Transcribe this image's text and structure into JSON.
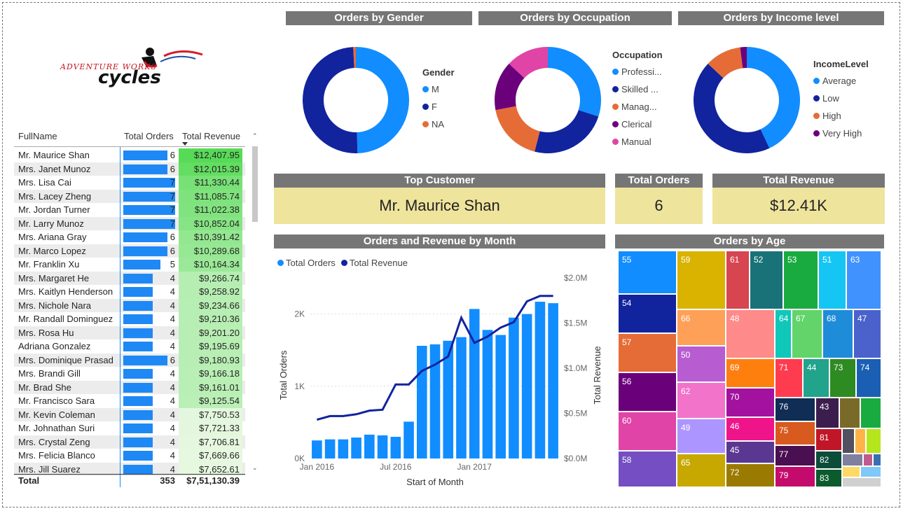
{
  "logo": {
    "line1": "ADVENTURE WORKS",
    "line2": "cycles"
  },
  "table": {
    "headers": {
      "name": "FullName",
      "orders": "Total Orders",
      "revenue": "Total Revenue"
    },
    "rows": [
      {
        "name": "Mr. Maurice Shan",
        "orders": 6,
        "revenue": "$12,407.95",
        "rev_num": 12407.95
      },
      {
        "name": "Mrs. Janet Munoz",
        "orders": 6,
        "revenue": "$12,015.39",
        "rev_num": 12015.39
      },
      {
        "name": "Mrs. Lisa Cai",
        "orders": 7,
        "revenue": "$11,330.44",
        "rev_num": 11330.44
      },
      {
        "name": "Mrs. Lacey Zheng",
        "orders": 7,
        "revenue": "$11,085.74",
        "rev_num": 11085.74
      },
      {
        "name": "Mr. Jordan Turner",
        "orders": 7,
        "revenue": "$11,022.38",
        "rev_num": 11022.38
      },
      {
        "name": "Mr. Larry Munoz",
        "orders": 7,
        "revenue": "$10,852.04",
        "rev_num": 10852.04
      },
      {
        "name": "Mrs. Ariana Gray",
        "orders": 6,
        "revenue": "$10,391.42",
        "rev_num": 10391.42
      },
      {
        "name": "Mr. Marco Lopez",
        "orders": 6,
        "revenue": "$10,289.68",
        "rev_num": 10289.68
      },
      {
        "name": "Mr. Franklin Xu",
        "orders": 5,
        "revenue": "$10,164.34",
        "rev_num": 10164.34
      },
      {
        "name": "Mrs. Margaret He",
        "orders": 4,
        "revenue": "$9,266.74",
        "rev_num": 9266.74
      },
      {
        "name": "Mrs. Kaitlyn Henderson",
        "orders": 4,
        "revenue": "$9,258.92",
        "rev_num": 9258.92
      },
      {
        "name": "Mrs. Nichole Nara",
        "orders": 4,
        "revenue": "$9,234.66",
        "rev_num": 9234.66
      },
      {
        "name": "Mr. Randall Dominguez",
        "orders": 4,
        "revenue": "$9,210.36",
        "rev_num": 9210.36
      },
      {
        "name": "Mrs. Rosa Hu",
        "orders": 4,
        "revenue": "$9,201.20",
        "rev_num": 9201.2
      },
      {
        "name": "Adriana Gonzalez",
        "orders": 4,
        "revenue": "$9,195.69",
        "rev_num": 9195.69
      },
      {
        "name": "Mrs. Dominique Prasad",
        "orders": 6,
        "revenue": "$9,180.93",
        "rev_num": 9180.93
      },
      {
        "name": "Mrs. Brandi Gill",
        "orders": 4,
        "revenue": "$9,166.18",
        "rev_num": 9166.18
      },
      {
        "name": "Mr. Brad She",
        "orders": 4,
        "revenue": "$9,161.01",
        "rev_num": 9161.01
      },
      {
        "name": "Mr. Francisco Sara",
        "orders": 4,
        "revenue": "$9,125.54",
        "rev_num": 9125.54
      },
      {
        "name": "Mr. Kevin Coleman",
        "orders": 4,
        "revenue": "$7,750.53",
        "rev_num": 7750.53
      },
      {
        "name": "Mr. Johnathan Suri",
        "orders": 4,
        "revenue": "$7,721.33",
        "rev_num": 7721.33
      },
      {
        "name": "Mrs. Crystal Zeng",
        "orders": 4,
        "revenue": "$7,706.81",
        "rev_num": 7706.81
      },
      {
        "name": "Mrs. Felicia Blanco",
        "orders": 4,
        "revenue": "$7,669.66",
        "rev_num": 7669.66
      },
      {
        "name": "Mrs. Jill Suarez",
        "orders": 4,
        "revenue": "$7,652.61",
        "rev_num": 7652.61
      }
    ],
    "total": {
      "label": "Total",
      "orders": "353",
      "revenue": "$7,51,130.39"
    }
  },
  "cards": {
    "top_customer": {
      "title": "Top Customer",
      "value": "Mr. Maurice Shan"
    },
    "total_orders": {
      "title": "Total Orders",
      "value": "6"
    },
    "total_revenue": {
      "title": "Total Revenue",
      "value": "$12.41K"
    }
  },
  "chart_data": [
    {
      "type": "pie",
      "title": "Orders by Gender",
      "legend_title": "Gender",
      "labels": [
        "M",
        "F",
        "NA"
      ],
      "values": [
        49.5,
        49.7,
        0.8
      ],
      "colors": [
        "#118DFF",
        "#12239E",
        "#E66C37"
      ]
    },
    {
      "type": "pie",
      "title": "Orders by Occupation",
      "legend_title": "Occupation",
      "labels": [
        "Professi...",
        "Skilled ...",
        "Manag...",
        "Clerical",
        "Manual"
      ],
      "values": [
        30,
        24,
        18,
        15,
        13
      ],
      "colors": [
        "#118DFF",
        "#12239E",
        "#E66C37",
        "#6B007B",
        "#E044A7"
      ]
    },
    {
      "type": "pie",
      "title": "Orders by Income level",
      "legend_title": "IncomeLevel",
      "labels": [
        "Average",
        "Low",
        "High",
        "Very High"
      ],
      "values": [
        43,
        44,
        11,
        2
      ],
      "colors": [
        "#118DFF",
        "#12239E",
        "#E66C37",
        "#6B007B"
      ]
    },
    {
      "type": "bar",
      "title": "Orders and Revenue by Month",
      "legend": [
        "Total Orders",
        "Total Revenue"
      ],
      "xlabel": "Start of Month",
      "ylabel": "Total Orders",
      "y2label": "Total Revenue",
      "x_ticks": [
        "Jan 2016",
        "Jul 2016",
        "Jan 2017"
      ],
      "y_ticks": [
        "0K",
        "1K",
        "2K"
      ],
      "y2_ticks": [
        "$0.0M",
        "$0.5M",
        "$1.0M",
        "$1.5M",
        "$2.0M"
      ],
      "ylim": [
        0,
        2500
      ],
      "y2lim": [
        0,
        2.0
      ],
      "series": [
        {
          "name": "Total Orders",
          "values": [
            250,
            265,
            265,
            290,
            330,
            320,
            300,
            510,
            1560,
            1580,
            1630,
            1680,
            2070,
            1780,
            1710,
            1950,
            2000,
            2170,
            2150
          ]
        },
        {
          "name": "Total Revenue",
          "values": [
            0.43,
            0.47,
            0.47,
            0.49,
            0.53,
            0.54,
            0.82,
            0.82,
            0.97,
            1.04,
            1.13,
            1.56,
            1.28,
            1.35,
            1.45,
            1.51,
            1.74,
            1.8,
            1.8
          ]
        }
      ]
    },
    {
      "type": "treemap",
      "title": "Orders by Age",
      "labels": [
        "55",
        "54",
        "57",
        "56",
        "60",
        "58",
        "59",
        "61",
        "52",
        "53",
        "51",
        "63",
        "66",
        "48",
        "64",
        "67",
        "68",
        "47",
        "50",
        "62",
        "49",
        "65",
        "69",
        "71",
        "44",
        "73",
        "74",
        "70",
        "76",
        "43",
        "46",
        "75",
        "45",
        "77",
        "81",
        "72",
        "79",
        "82",
        "83"
      ]
    }
  ]
}
